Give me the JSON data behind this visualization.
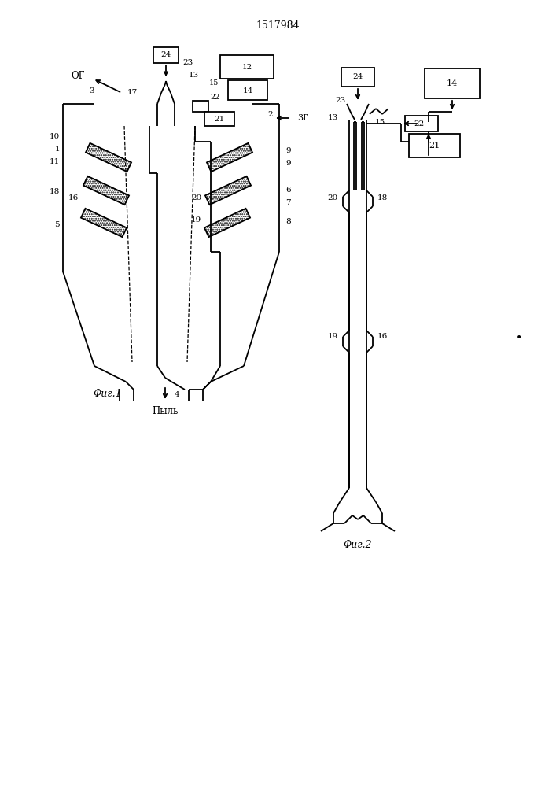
{
  "title": "1517984",
  "fig1_label": "Φиг.1",
  "fig2_label": "Φиг.2",
  "dust_label": "Пыль",
  "og_label": "ОГ",
  "zg_label": "3Г",
  "bg": "#ffffff",
  "lc": "#000000",
  "lw": 1.3
}
